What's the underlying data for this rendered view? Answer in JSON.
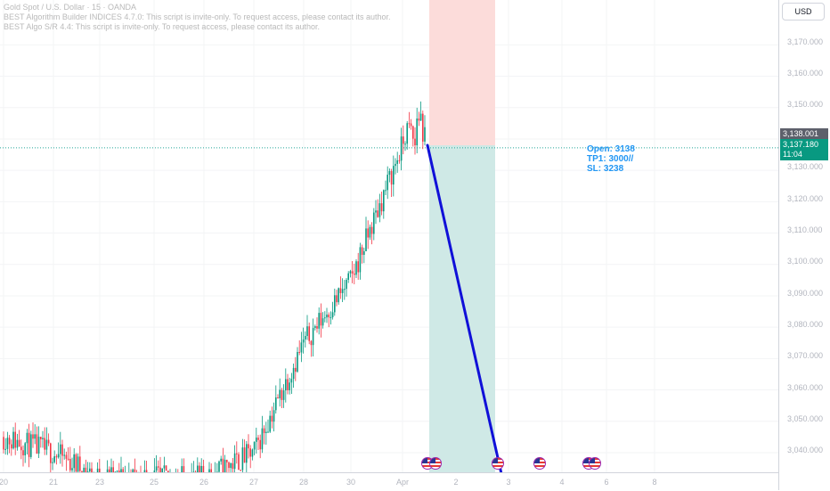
{
  "legend": {
    "symbol": "Gold Spot / U.S. Dollar · 15 · OANDA",
    "indicator1": "BEST Algorithm Builder INDICES 4.7.0: This script is invite-only. To request access, please contact its author.",
    "indicator2": "BEST Algo S/R 4.4: This script is invite-only. To request access, please contact its author."
  },
  "price_scale": {
    "currency": "USD",
    "ticks": [
      "3,170.000",
      "3,160.000",
      "3,150.000",
      "3,130.000",
      "3,120.000",
      "3,110.000",
      "3,100.000",
      "3,090.000",
      "3,080.000",
      "3,070.000",
      "3,060.000",
      "3,050.000",
      "3,040.000"
    ],
    "open_tag": "3,138.001",
    "last_tag": "3,137.180",
    "countdown": "11:04"
  },
  "time_axis": {
    "ticks": [
      "20",
      "21",
      "23",
      "25",
      "26",
      "27",
      "28",
      "30",
      "Apr",
      "2",
      "3",
      "4",
      "6",
      "8"
    ]
  },
  "trade": {
    "open": "Open: 3138",
    "tp": "TP1: 3000//",
    "sl": "SL: 3238"
  },
  "colors": {
    "up": "#089981",
    "down": "#f23645",
    "stop_zone": "#fcdcda",
    "target_zone": "#cfe9e6",
    "projection": "#1010d8",
    "price_line": "#26a69a"
  },
  "chart_data": {
    "type": "candlestick",
    "symbol": "XAUUSD",
    "timeframe": "15",
    "ylim": [
      3032,
      3178
    ],
    "x_ticks": [
      "20",
      "21",
      "23",
      "25",
      "26",
      "27",
      "28",
      "30",
      "Apr",
      "2",
      "3",
      "4",
      "6",
      "8"
    ],
    "path": [
      {
        "x": "20",
        "y": 3045
      },
      {
        "x": "21",
        "y": 3040
      },
      {
        "x": "23",
        "y": 3032
      },
      {
        "x": "25",
        "y": 3032
      },
      {
        "x": "26",
        "y": 3032
      },
      {
        "x": "27",
        "y": 3040
      },
      {
        "x": "28",
        "y": 3075
      },
      {
        "x": "30",
        "y": 3095
      },
      {
        "x": "Apr",
        "y": 3138
      }
    ],
    "high": 3149,
    "current_price": 3137.18,
    "position": {
      "side": "short",
      "entry": 3138,
      "take_profit": 3000,
      "stop_loss": 3238
    }
  }
}
